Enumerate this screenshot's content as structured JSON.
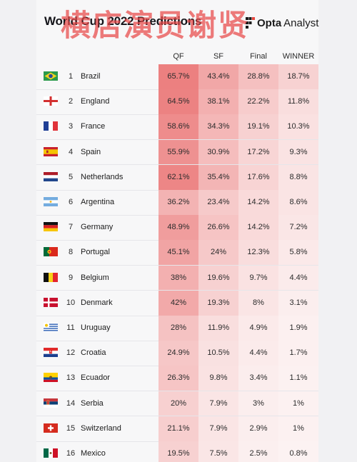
{
  "header": {
    "title": "World Cup 2022 Predictions",
    "brand_strong": "Opta",
    "brand_light": "Analyst",
    "watermark": "横店演员谢贤"
  },
  "chart_data": {
    "type": "table",
    "columns": [
      "QF",
      "SF",
      "Final",
      "WINNER"
    ],
    "rows": [
      {
        "rank": "1",
        "team": "Brazil",
        "flag": "brazil-flag",
        "values": [
          "65.7%",
          "43.4%",
          "28.8%",
          "18.7%"
        ],
        "numeric": [
          65.7,
          43.4,
          28.8,
          18.7
        ]
      },
      {
        "rank": "2",
        "team": "England",
        "flag": "england-flag",
        "values": [
          "64.5%",
          "38.1%",
          "22.2%",
          "11.8%"
        ],
        "numeric": [
          64.5,
          38.1,
          22.2,
          11.8
        ]
      },
      {
        "rank": "3",
        "team": "France",
        "flag": "france-flag",
        "values": [
          "58.6%",
          "34.3%",
          "19.1%",
          "10.3%"
        ],
        "numeric": [
          58.6,
          34.3,
          19.1,
          10.3
        ]
      },
      {
        "rank": "4",
        "team": "Spain",
        "flag": "spain-flag",
        "values": [
          "55.9%",
          "30.9%",
          "17.2%",
          "9.3%"
        ],
        "numeric": [
          55.9,
          30.9,
          17.2,
          9.3
        ]
      },
      {
        "rank": "5",
        "team": "Netherlands",
        "flag": "netherlands-flag",
        "values": [
          "62.1%",
          "35.4%",
          "17.6%",
          "8.8%"
        ],
        "numeric": [
          62.1,
          35.4,
          17.6,
          8.8
        ]
      },
      {
        "rank": "6",
        "team": "Argentina",
        "flag": "argentina-flag",
        "values": [
          "36.2%",
          "23.4%",
          "14.2%",
          "8.6%"
        ],
        "numeric": [
          36.2,
          23.4,
          14.2,
          8.6
        ]
      },
      {
        "rank": "7",
        "team": "Germany",
        "flag": "germany-flag",
        "values": [
          "48.9%",
          "26.6%",
          "14.2%",
          "7.2%"
        ],
        "numeric": [
          48.9,
          26.6,
          14.2,
          7.2
        ]
      },
      {
        "rank": "8",
        "team": "Portugal",
        "flag": "portugal-flag",
        "values": [
          "45.1%",
          "24%",
          "12.3%",
          "5.8%"
        ],
        "numeric": [
          45.1,
          24,
          12.3,
          5.8
        ]
      },
      {
        "rank": "9",
        "team": "Belgium",
        "flag": "belgium-flag",
        "values": [
          "38%",
          "19.6%",
          "9.7%",
          "4.4%"
        ],
        "numeric": [
          38,
          19.6,
          9.7,
          4.4
        ]
      },
      {
        "rank": "10",
        "team": "Denmark",
        "flag": "denmark-flag",
        "values": [
          "42%",
          "19.3%",
          "8%",
          "3.1%"
        ],
        "numeric": [
          42,
          19.3,
          8,
          3.1
        ]
      },
      {
        "rank": "11",
        "team": "Uruguay",
        "flag": "uruguay-flag",
        "values": [
          "28%",
          "11.9%",
          "4.9%",
          "1.9%"
        ],
        "numeric": [
          28,
          11.9,
          4.9,
          1.9
        ]
      },
      {
        "rank": "12",
        "team": "Croatia",
        "flag": "croatia-flag",
        "values": [
          "24.9%",
          "10.5%",
          "4.4%",
          "1.7%"
        ],
        "numeric": [
          24.9,
          10.5,
          4.4,
          1.7
        ]
      },
      {
        "rank": "13",
        "team": "Ecuador",
        "flag": "ecuador-flag",
        "values": [
          "26.3%",
          "9.8%",
          "3.4%",
          "1.1%"
        ],
        "numeric": [
          26.3,
          9.8,
          3.4,
          1.1
        ]
      },
      {
        "rank": "14",
        "team": "Serbia",
        "flag": "serbia-flag",
        "values": [
          "20%",
          "7.9%",
          "3%",
          "1%"
        ],
        "numeric": [
          20,
          7.9,
          3,
          1
        ]
      },
      {
        "rank": "15",
        "team": "Switzerland",
        "flag": "switzerland-flag",
        "values": [
          "21.1%",
          "7.9%",
          "2.9%",
          "1%"
        ],
        "numeric": [
          21.1,
          7.9,
          2.9,
          1
        ]
      },
      {
        "rank": "16",
        "team": "Mexico",
        "flag": "mexico-flag",
        "values": [
          "19.5%",
          "7.5%",
          "2.5%",
          "0.8%"
        ],
        "numeric": [
          19.5,
          7.5,
          2.5,
          0.8
        ]
      }
    ],
    "color_scale": {
      "low": "#fcf3f3",
      "high": "#ec7f7f",
      "max_value": 66
    }
  }
}
